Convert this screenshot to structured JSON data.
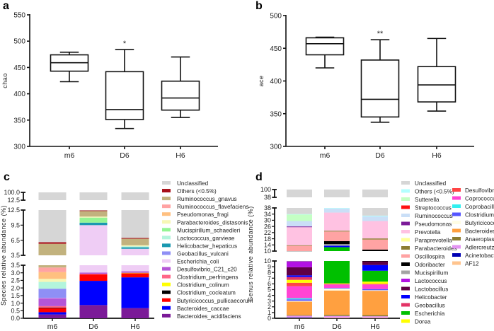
{
  "chart_data": [
    {
      "type": "box",
      "panel": "a",
      "ylabel": "chao",
      "ylim": [
        300,
        550
      ],
      "yticks": [
        "300",
        "350",
        "400",
        "450",
        "500",
        "550"
      ],
      "categories": [
        "m6",
        "D6",
        "H6"
      ],
      "boxes": [
        {
          "min": 423,
          "q1": 443,
          "median": 459,
          "q3": 474,
          "max": 479
        },
        {
          "min": 334,
          "q1": 351,
          "median": 370,
          "q3": 442,
          "max": 484
        },
        {
          "min": 355,
          "q1": 369,
          "median": 392,
          "q3": 424,
          "max": 470
        }
      ],
      "annotations": [
        "",
        "*",
        ""
      ]
    },
    {
      "type": "box",
      "panel": "b",
      "ylabel": "ace",
      "ylim": [
        300,
        500
      ],
      "yticks": [
        "300",
        "350",
        "400",
        "450",
        "500"
      ],
      "categories": [
        "m6",
        "D6",
        "H6"
      ],
      "boxes": [
        {
          "min": 420,
          "q1": 440,
          "median": 457,
          "q3": 466,
          "max": 467
        },
        {
          "min": 337,
          "q1": 345,
          "median": 372,
          "q3": 432,
          "max": 463
        },
        {
          "min": 354,
          "q1": 368,
          "median": 394,
          "q3": 422,
          "max": 465
        }
      ],
      "annotations": [
        "",
        "**",
        ""
      ]
    },
    {
      "type": "bar",
      "stacked": true,
      "panel": "c",
      "ylabel": "Species relative abundance (%)",
      "categories": [
        "m6",
        "D6",
        "H6"
      ],
      "axis_segments": [
        {
          "range": [
            0,
            3.5
          ],
          "ticks": [
            "0.0",
            "0.5",
            "1.0",
            "1.5",
            "2.0",
            "2.5",
            "3.0",
            "3.5"
          ]
        },
        {
          "range": [
            3.5,
            12.5
          ],
          "ticks": [
            "3.5",
            "6.5",
            "9.5",
            "12.5"
          ]
        },
        {
          "range": [
            12.5,
            100
          ],
          "ticks": [
            "12.5",
            "100.0"
          ]
        }
      ],
      "series": [
        {
          "name": "Bacteroides_acidifaciens",
          "color": "#7b1a98",
          "values": [
            0.25,
            0.87,
            0.67
          ]
        },
        {
          "name": "Bacteroides_caccae",
          "color": "#0000ff",
          "values": [
            0.15,
            1.6,
            2.03
          ]
        },
        {
          "name": "Butyricicoccus_pullicaecorum",
          "color": "#ff0000",
          "values": [
            0.27,
            0.43,
            0.27
          ]
        },
        {
          "name": "Clostridium_cocleatum",
          "color": "#000000",
          "values": [
            0.03,
            0,
            0
          ]
        },
        {
          "name": "Clostridium_colinum",
          "color": "#ffff00",
          "values": [
            0,
            0,
            0.03
          ]
        },
        {
          "name": "Clostridium_perfringens",
          "color": "#ff6688",
          "values": [
            0.1,
            0.03,
            0
          ]
        },
        {
          "name": "Desulfovibrio_C21_c20",
          "color": "#b455d6",
          "values": [
            0.53,
            0.09,
            0.1
          ]
        },
        {
          "name": "Escherichia_coli",
          "color": "#efcdf5",
          "values": [
            0.02,
            6.48,
            1.7
          ]
        },
        {
          "name": "Geobacillus_vulcani",
          "color": "#8f8ff5",
          "values": [
            0.6,
            0,
            0
          ]
        },
        {
          "name": "Helicobacter_hepaticus",
          "color": "#1a98b0",
          "values": [
            0,
            0.5,
            0.3
          ]
        },
        {
          "name": "Lactococcus_garvieae",
          "color": "#b3f5dc",
          "values": [
            0.45,
            0,
            0.2
          ]
        },
        {
          "name": "Mucispirillum_schaedleri",
          "color": "#94f594",
          "values": [
            0,
            1.0,
            0
          ]
        },
        {
          "name": "Parabacteroides_distasonis",
          "color": "#f7f7b5",
          "values": [
            0.2,
            0.2,
            0.2
          ]
        },
        {
          "name": "Pseudomonas_fragi",
          "color": "#ffc080",
          "values": [
            0.45,
            0,
            0
          ]
        },
        {
          "name": "Ruminococcus_flavefaciens",
          "color": "#ffa3a3",
          "values": [
            0.3,
            0,
            0
          ]
        },
        {
          "name": "Ruminococcus_gnavus",
          "color": "#c2b27e",
          "values": [
            2.45,
            1.1,
            1.3
          ]
        },
        {
          "name": "Others (<0.5%)",
          "color": "#a8101a",
          "values": [
            0.3,
            0.15,
            0.15
          ]
        },
        {
          "name": "Unclassified",
          "color": "#d6d6d6",
          "values": [
            93.9,
            87.55,
            93.05
          ]
        }
      ]
    },
    {
      "type": "bar",
      "stacked": true,
      "panel": "d",
      "ylabel": "Genus relative abundance (%)",
      "categories": [
        "m6",
        "D6",
        "H6"
      ],
      "axis_segments": [
        {
          "range": [
            0,
            10
          ],
          "ticks": [
            "0",
            "1",
            "2",
            "3",
            "4",
            "5",
            "6",
            "7",
            "8",
            "9",
            "10"
          ]
        },
        {
          "range": [
            10,
            38
          ],
          "ticks": [
            "10",
            "14",
            "18",
            "22",
            "26",
            "30",
            "34",
            "38"
          ]
        },
        {
          "range": [
            38,
            100
          ],
          "ticks": [
            "38",
            "100"
          ]
        }
      ],
      "series": [
        {
          "name": "AF12",
          "color": "#ffc48e",
          "values": [
            0.1,
            0.1,
            0.1
          ]
        },
        {
          "name": "Acinetobacter",
          "color": "#0000b3",
          "values": [
            0.1,
            0,
            0
          ]
        },
        {
          "name": "Adlercreutzia",
          "color": "#e394f2",
          "values": [
            0.25,
            0.3,
            0.25
          ]
        },
        {
          "name": "Anaeroplasma",
          "color": "#8c7d32",
          "values": [
            0.1,
            0.2,
            0.2
          ]
        },
        {
          "name": "Bacteroides",
          "color": "#ffa040",
          "values": [
            2.35,
            4.25,
            4.25
          ]
        },
        {
          "name": "Butyricicoccus",
          "color": "#fffde3",
          "values": [
            0.15,
            0.35,
            0.1
          ]
        },
        {
          "name": "Clostridium",
          "color": "#5555ff",
          "values": [
            0.25,
            0.1,
            0.2
          ]
        },
        {
          "name": "Coprobacillus",
          "color": "#33f0f0",
          "values": [
            0.2,
            0,
            0
          ]
        },
        {
          "name": "Coprococcus",
          "color": "#ff44d4",
          "values": [
            2.1,
            0.6,
            0.8
          ]
        },
        {
          "name": "Desulfovibrio",
          "color": "#ff4444",
          "values": [
            0.6,
            0.1,
            0.1
          ]
        },
        {
          "name": "Dorea",
          "color": "#ffff00",
          "values": [
            0.5,
            0.1,
            0.4
          ]
        },
        {
          "name": "Escherichia",
          "color": "#00c000",
          "values": [
            0,
            6.4,
            1.9
          ]
        },
        {
          "name": "Geobacillus",
          "color": "#e33366",
          "values": [
            0.5,
            0,
            0
          ]
        },
        {
          "name": "Helicobacter",
          "color": "#0000ff",
          "values": [
            0.3,
            1.0,
            1.0
          ]
        },
        {
          "name": "Lactobacillus",
          "color": "#600045",
          "values": [
            1.4,
            0,
            0.7
          ]
        },
        {
          "name": "Lactococcus",
          "color": "#b312e3",
          "values": [
            1.05,
            0,
            0
          ]
        },
        {
          "name": "Mucispirillum",
          "color": "#a3a3a3",
          "values": [
            0.05,
            1.0,
            0
          ]
        },
        {
          "name": "Odoribacter",
          "color": "#000000",
          "values": [
            0,
            2.0,
            1.0
          ]
        },
        {
          "name": "Oscillospira",
          "color": "#ffa3a3",
          "values": [
            3.4,
            6.2,
            6.5
          ]
        },
        {
          "name": "Parabacteroides",
          "color": "#8c7d32",
          "values": [
            0.4,
            0.5,
            0.7
          ]
        },
        {
          "name": "Paraprevotella",
          "color": "#ffff99",
          "values": [
            0,
            0,
            0
          ]
        },
        {
          "name": "Prevotella",
          "color": "#ffc2e2",
          "values": [
            11.7,
            11.8,
            11.3
          ]
        },
        {
          "name": "Pseudomonas",
          "color": "#7b1a98",
          "values": [
            0.5,
            0,
            0
          ]
        },
        {
          "name": "Ruminococcus",
          "color": "#cadff7",
          "values": [
            3.5,
            2.7,
            3.0
          ]
        },
        {
          "name": "Streptococcus",
          "color": "#ff1111",
          "values": [
            0,
            0,
            0
          ]
        },
        {
          "name": "Sutterella",
          "color": "#c4ffc4",
          "values": [
            4.3,
            0,
            0
          ]
        },
        {
          "name": "Others (<0.5%)",
          "color": "#b3ffff",
          "values": [
            0.2,
            0.3,
            0.5
          ]
        },
        {
          "name": "Unclassified",
          "color": "#d6d6d6",
          "values": [
            66.0,
            62.0,
            67.0
          ]
        }
      ]
    }
  ]
}
